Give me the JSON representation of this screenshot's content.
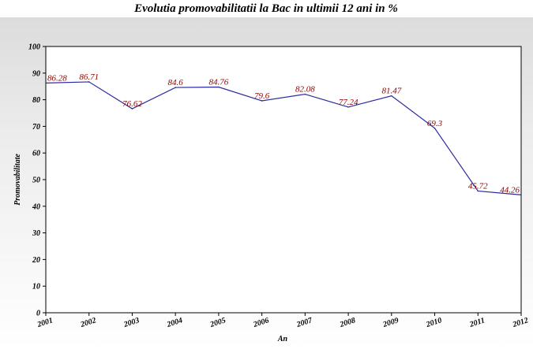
{
  "chart_data": {
    "type": "line",
    "title": "Evolutia promovabilitatii la Bac in ultimii 12 ani in %",
    "xlabel": "An",
    "ylabel": "Promovabilitate",
    "x": [
      "2001",
      "2002",
      "2003",
      "2004",
      "2005",
      "2006",
      "2007",
      "2008",
      "2009",
      "2010",
      "2011",
      "2012"
    ],
    "values": [
      86.28,
      86.71,
      76.62,
      84.6,
      84.76,
      79.6,
      82.08,
      77.24,
      81.47,
      69.3,
      45.72,
      44.26
    ],
    "data_labels": [
      "86.28",
      "86.71",
      "76.62",
      "84.6",
      "84.76",
      "79.6",
      "82.08",
      "77.24",
      "81.47",
      "69.3",
      "45.72",
      "44.26"
    ],
    "yticks": [
      "0",
      "10",
      "20",
      "30",
      "40",
      "50",
      "60",
      "70",
      "80",
      "90",
      "100"
    ],
    "ylim": [
      0,
      100
    ],
    "grid": false,
    "legend": "none",
    "colors": {
      "line": "#2a2aa0",
      "data_label": "#8b0000",
      "background_top": "#e3e3e3",
      "plot_background": "#ffffff"
    }
  }
}
